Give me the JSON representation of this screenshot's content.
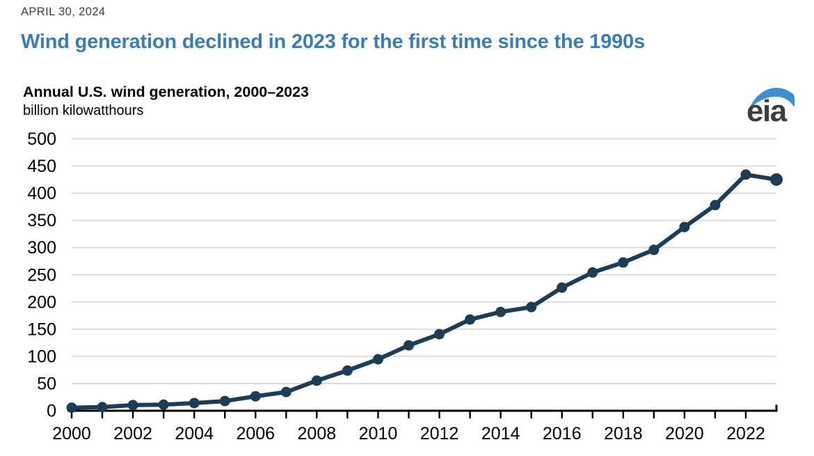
{
  "header": {
    "date": "APRIL 30, 2024",
    "headline": "Wind generation declined in 2023 for the first time since the 1990s"
  },
  "chart": {
    "title": "Annual U.S. wind generation, 2000–2023",
    "units": "billion kilowatthours"
  },
  "logo": {
    "text": "eia"
  },
  "colors": {
    "headline": "#3c7cb1",
    "series": "#1d3c55",
    "gridline": "#d9d9d9",
    "axis": "#000000",
    "text": "#000000",
    "date_text": "#404040",
    "logo_text": "#3d3d3d",
    "logo_swoosh": "#3f8ecd"
  },
  "chart_data": {
    "type": "line",
    "title": "Annual U.S. wind generation, 2000–2023",
    "xlabel": "",
    "ylabel": "billion kilowatthours",
    "x": [
      2000,
      2001,
      2002,
      2003,
      2004,
      2005,
      2006,
      2007,
      2008,
      2009,
      2010,
      2011,
      2012,
      2013,
      2014,
      2015,
      2016,
      2017,
      2018,
      2019,
      2020,
      2021,
      2022,
      2023
    ],
    "series": [
      {
        "name": "U.S. wind generation",
        "values": [
          5.6,
          6.7,
          10.4,
          11.2,
          14.1,
          17.8,
          26.6,
          34.4,
          55.4,
          73.9,
          94.7,
          120.2,
          140.8,
          167.8,
          181.7,
          190.7,
          226.5,
          254.3,
          272.7,
          295.9,
          337.9,
          378.2,
          434.3,
          425.2
        ]
      }
    ],
    "ylim": [
      0,
      500
    ],
    "ytick_step": 50,
    "yticks": [
      0,
      50,
      100,
      150,
      200,
      250,
      300,
      350,
      400,
      450,
      500
    ],
    "xtick_label_step": 2,
    "xtick_labels": [
      2000,
      2002,
      2004,
      2006,
      2008,
      2010,
      2012,
      2014,
      2016,
      2018,
      2020,
      2022
    ],
    "grid": "horizontal",
    "legend": "none",
    "marker": "circle"
  }
}
